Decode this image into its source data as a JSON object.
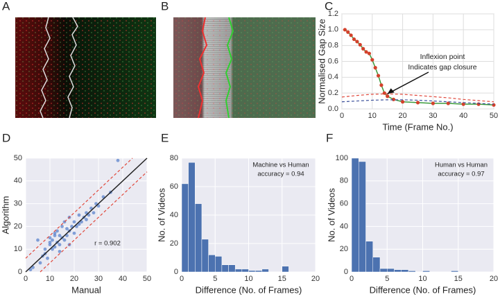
{
  "panels": [
    "A",
    "B",
    "C",
    "D",
    "E",
    "F"
  ],
  "chart_data": [
    {
      "type": "line",
      "xlabel": "Time (Frame No.)",
      "ylabel": "Normalised Gap Size",
      "annotations": [
        "Inflexion point",
        "Indicates gap closure"
      ],
      "xlim": [
        0,
        50
      ],
      "ylim": [
        0,
        1.2
      ],
      "xticks": [
        0,
        10,
        20,
        30,
        40,
        50
      ],
      "yticks": [
        {
          "value": 0,
          "label": "0.0"
        },
        0.2,
        0.4,
        0.6,
        0.8,
        {
          "value": 1,
          "label": "1.0"
        },
        1.2
      ],
      "background": "#ffffff",
      "grid_color": "#dddddd",
      "grid": true,
      "series": [
        {
          "color": "#3a9a3a",
          "marker_color": "#d4412b",
          "x": [
            1,
            2,
            3,
            4,
            5,
            6,
            7,
            8,
            9,
            10,
            11,
            12,
            13,
            14,
            15,
            17,
            20,
            25,
            30,
            35,
            40,
            45,
            50
          ],
          "values": [
            1.0,
            0.97,
            0.93,
            0.88,
            0.85,
            0.81,
            0.76,
            0.72,
            0.7,
            0.62,
            0.52,
            0.42,
            0.3,
            0.2,
            0.16,
            0.12,
            0.09,
            0.08,
            0.07,
            0.07,
            0.06,
            0.06,
            0.05
          ]
        },
        {
          "color": "#e0473a",
          "dash": true,
          "x": [
            0,
            5,
            10,
            15,
            20,
            25,
            30,
            35,
            40,
            45,
            50
          ],
          "values": [
            0.15,
            0.17,
            0.185,
            0.19,
            0.185,
            0.17,
            0.155,
            0.14,
            0.12,
            0.105,
            0.09
          ]
        },
        {
          "color": "#3a4f9a",
          "dash": true,
          "x": [
            0,
            5,
            10,
            15,
            20,
            25,
            30,
            35,
            40,
            45,
            50
          ],
          "values": [
            0.09,
            0.1,
            0.11,
            0.115,
            0.115,
            0.11,
            0.1,
            0.09,
            0.08,
            0.07,
            0.06
          ]
        }
      ]
    },
    {
      "type": "scatter",
      "xlabel": "Manual",
      "ylabel": "Algorithm",
      "annotations": [
        "r = 0.902"
      ],
      "xlim": [
        0,
        50
      ],
      "ylim": [
        0,
        50
      ],
      "xticks": [
        0,
        10,
        20,
        30,
        40,
        50
      ],
      "yticks": [
        0,
        10,
        20,
        30,
        40,
        50
      ],
      "background": "#eaeaf2",
      "grid_color": "#ffffff",
      "grid": true,
      "series": [
        {
          "mode": "markers",
          "color": "#5b83cc",
          "x": [
            2,
            3,
            5,
            6,
            7,
            8,
            8,
            9,
            10,
            10,
            11,
            11,
            12,
            12,
            13,
            13,
            14,
            14,
            15,
            15,
            16,
            16,
            17,
            17,
            18,
            18,
            19,
            20,
            20,
            21,
            22,
            22,
            23,
            24,
            25,
            25,
            26,
            27,
            28,
            29,
            30,
            32,
            35,
            38,
            14,
            12,
            10,
            18
          ],
          "values": [
            1,
            2,
            14,
            4,
            7,
            8,
            10,
            6,
            12,
            15,
            10,
            14,
            16,
            11,
            13,
            18,
            12,
            16,
            15,
            20,
            14,
            22,
            16,
            19,
            18,
            24,
            20,
            17,
            22,
            20,
            21,
            25,
            22,
            24,
            26,
            23,
            25,
            28,
            26,
            30,
            29,
            33,
            35,
            49,
            9,
            17,
            13,
            12
          ]
        },
        {
          "mode": "lines",
          "color": "#222222",
          "x": [
            0,
            50
          ],
          "values": [
            0,
            50
          ]
        },
        {
          "mode": "lines",
          "color": "#e0473a",
          "dash": true,
          "x": [
            0,
            44
          ],
          "values": [
            6,
            50
          ]
        },
        {
          "mode": "lines",
          "color": "#e0473a",
          "dash": true,
          "x": [
            6,
            50
          ],
          "values": [
            0,
            44
          ]
        }
      ]
    },
    {
      "type": "histogram",
      "xlabel": "Difference (No. of Frames)",
      "ylabel": "No. of Videos",
      "annotations": [
        "Machine vs Human",
        "accuracy = 0.94"
      ],
      "xlim": [
        0,
        20
      ],
      "ylim": [
        0,
        80
      ],
      "xticks": [
        0,
        5,
        10,
        15,
        20
      ],
      "yticks": [
        0,
        20,
        40,
        60,
        80
      ],
      "background": "#eaeaf2",
      "grid_color": "#ffffff",
      "grid": true,
      "color": "#4c72b0",
      "bins": [
        0,
        1,
        2,
        3,
        4,
        5,
        6,
        7,
        8,
        9,
        10,
        11,
        12,
        13,
        14,
        15,
        16
      ],
      "values": [
        62,
        77,
        48,
        23,
        12,
        11,
        5,
        5,
        2,
        2,
        1,
        1,
        2,
        0,
        0,
        4
      ]
    },
    {
      "type": "histogram",
      "xlabel": "Difference (No. of Frames)",
      "ylabel": "No. of Videos",
      "annotations": [
        "Human vs Human",
        "accuracy = 0.97"
      ],
      "xlim": [
        0,
        20
      ],
      "ylim": [
        0,
        100
      ],
      "xticks": [
        0,
        5,
        10,
        15,
        20
      ],
      "yticks": [
        0,
        20,
        40,
        60,
        80,
        100
      ],
      "background": "#eaeaf2",
      "grid_color": "#ffffff",
      "grid": true,
      "color": "#4c72b0",
      "bins": [
        0,
        1,
        2,
        3,
        4,
        5,
        6,
        7,
        8,
        9,
        10,
        11,
        12,
        13,
        14,
        15
      ],
      "values": [
        100,
        97,
        27,
        13,
        3,
        3,
        2,
        2,
        1,
        0,
        1,
        0,
        0,
        0,
        1
      ]
    }
  ]
}
